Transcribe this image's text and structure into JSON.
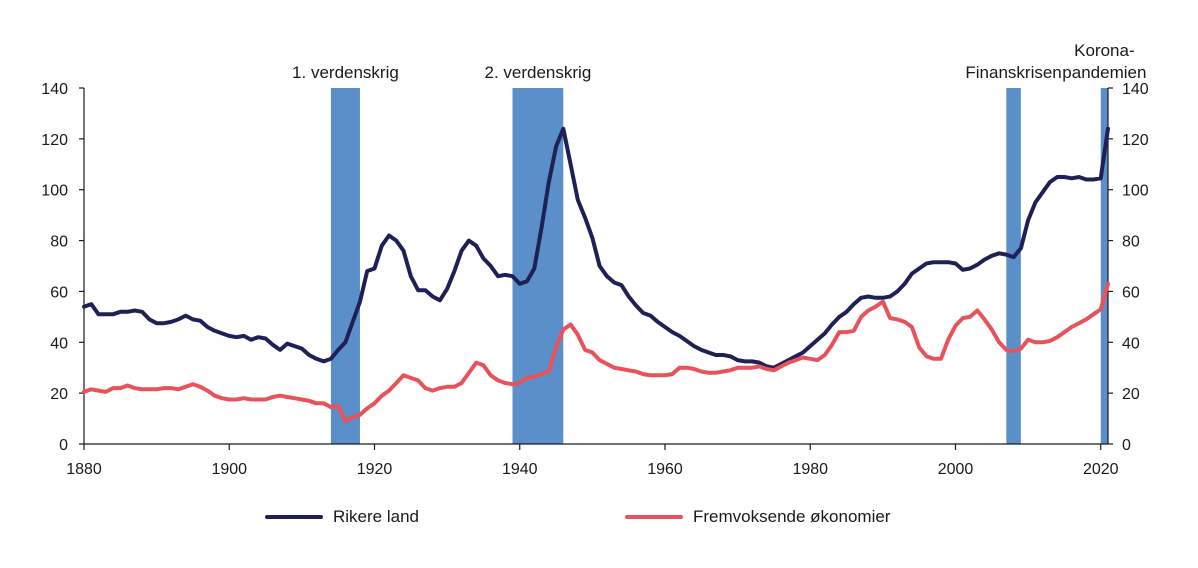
{
  "chart_data": {
    "type": "line",
    "xlim": [
      1880,
      2021
    ],
    "ylim": [
      0,
      140
    ],
    "x_ticks": [
      1880,
      1900,
      1920,
      1940,
      1960,
      1980,
      2000,
      2020
    ],
    "y_ticks": [
      0,
      20,
      40,
      60,
      80,
      100,
      120,
      140
    ],
    "grid": false,
    "legend_position": "bottom",
    "shaded_periods": [
      {
        "label_lines": [
          "1. verdenskrig"
        ],
        "start": 1914,
        "end": 1918
      },
      {
        "label_lines": [
          "2. verdenskrig"
        ],
        "start": 1939,
        "end": 1946
      },
      {
        "label_lines": [
          "Finanskrisen"
        ],
        "start": 2007,
        "end": 2009
      },
      {
        "label_lines": [
          "Korona-",
          "pandemien"
        ],
        "start": 2020,
        "end": 2021
      }
    ],
    "series": [
      {
        "name": "Rikere land",
        "color": "#1f2156",
        "points": [
          [
            1880,
            54
          ],
          [
            1881,
            55
          ],
          [
            1882,
            51
          ],
          [
            1883,
            51
          ],
          [
            1884,
            51
          ],
          [
            1885,
            52
          ],
          [
            1886,
            52
          ],
          [
            1887,
            52.5
          ],
          [
            1888,
            52
          ],
          [
            1889,
            49
          ],
          [
            1890,
            47.5
          ],
          [
            1891,
            47.5
          ],
          [
            1892,
            48
          ],
          [
            1893,
            49
          ],
          [
            1894,
            50.5
          ],
          [
            1895,
            49
          ],
          [
            1896,
            48.5
          ],
          [
            1897,
            46
          ],
          [
            1898,
            44.5
          ],
          [
            1899,
            43.5
          ],
          [
            1900,
            42.5
          ],
          [
            1901,
            42
          ],
          [
            1902,
            42.5
          ],
          [
            1903,
            41
          ],
          [
            1904,
            42
          ],
          [
            1905,
            41.5
          ],
          [
            1906,
            39
          ],
          [
            1907,
            37
          ],
          [
            1908,
            39.5
          ],
          [
            1909,
            38.5
          ],
          [
            1910,
            37.5
          ],
          [
            1911,
            35
          ],
          [
            1912,
            33.5
          ],
          [
            1913,
            32.5
          ],
          [
            1914,
            33.5
          ],
          [
            1915,
            37
          ],
          [
            1916,
            40
          ],
          [
            1917,
            48
          ],
          [
            1918,
            56
          ],
          [
            1919,
            68
          ],
          [
            1920,
            69
          ],
          [
            1921,
            78
          ],
          [
            1922,
            82
          ],
          [
            1923,
            80
          ],
          [
            1924,
            76
          ],
          [
            1925,
            66
          ],
          [
            1926,
            60.5
          ],
          [
            1927,
            60.5
          ],
          [
            1928,
            58
          ],
          [
            1929,
            56.5
          ],
          [
            1930,
            61
          ],
          [
            1931,
            68
          ],
          [
            1932,
            76
          ],
          [
            1933,
            80
          ],
          [
            1934,
            78
          ],
          [
            1935,
            73
          ],
          [
            1936,
            70
          ],
          [
            1937,
            66
          ],
          [
            1938,
            66.5
          ],
          [
            1939,
            66
          ],
          [
            1940,
            63
          ],
          [
            1941,
            64
          ],
          [
            1942,
            69
          ],
          [
            1943,
            85
          ],
          [
            1944,
            103
          ],
          [
            1945,
            117
          ],
          [
            1946,
            124
          ],
          [
            1947,
            110
          ],
          [
            1948,
            96
          ],
          [
            1949,
            89
          ],
          [
            1950,
            81
          ],
          [
            1951,
            70
          ],
          [
            1952,
            66
          ],
          [
            1953,
            63.5
          ],
          [
            1954,
            62.5
          ],
          [
            1955,
            58
          ],
          [
            1956,
            54.5
          ],
          [
            1957,
            51.5
          ],
          [
            1958,
            50.5
          ],
          [
            1959,
            48
          ],
          [
            1960,
            46
          ],
          [
            1961,
            44
          ],
          [
            1962,
            42.5
          ],
          [
            1963,
            40.5
          ],
          [
            1964,
            38.5
          ],
          [
            1965,
            37
          ],
          [
            1966,
            36
          ],
          [
            1967,
            35
          ],
          [
            1968,
            35
          ],
          [
            1969,
            34.5
          ],
          [
            1970,
            33
          ],
          [
            1971,
            32.5
          ],
          [
            1972,
            32.5
          ],
          [
            1973,
            32
          ],
          [
            1974,
            30.5
          ],
          [
            1975,
            30
          ],
          [
            1976,
            31.5
          ],
          [
            1977,
            33
          ],
          [
            1978,
            34.5
          ],
          [
            1979,
            36
          ],
          [
            1980,
            38.5
          ],
          [
            1981,
            41
          ],
          [
            1982,
            43.5
          ],
          [
            1983,
            47
          ],
          [
            1984,
            50
          ],
          [
            1985,
            52
          ],
          [
            1986,
            55
          ],
          [
            1987,
            57.5
          ],
          [
            1988,
            58
          ],
          [
            1989,
            57.5
          ],
          [
            1990,
            57.5
          ],
          [
            1991,
            58
          ],
          [
            1992,
            60
          ],
          [
            1993,
            63
          ],
          [
            1994,
            67
          ],
          [
            1995,
            69
          ],
          [
            1996,
            71
          ],
          [
            1997,
            71.5
          ],
          [
            1998,
            71.5
          ],
          [
            1999,
            71.5
          ],
          [
            2000,
            71
          ],
          [
            2001,
            68.5
          ],
          [
            2002,
            69
          ],
          [
            2003,
            70.5
          ],
          [
            2004,
            72.5
          ],
          [
            2005,
            74
          ],
          [
            2006,
            75
          ],
          [
            2007,
            74.5
          ],
          [
            2008,
            73.5
          ],
          [
            2009,
            77
          ],
          [
            2010,
            88
          ],
          [
            2011,
            95
          ],
          [
            2012,
            99
          ],
          [
            2013,
            103
          ],
          [
            2014,
            105
          ],
          [
            2015,
            105
          ],
          [
            2016,
            104.5
          ],
          [
            2017,
            105
          ],
          [
            2018,
            104
          ],
          [
            2019,
            104
          ],
          [
            2020,
            104.5
          ],
          [
            2021,
            124
          ]
        ]
      },
      {
        "name": "Fremvoksende økonomier",
        "color": "#e8535b",
        "points": [
          [
            1880,
            20.5
          ],
          [
            1881,
            21.5
          ],
          [
            1882,
            21
          ],
          [
            1883,
            20.5
          ],
          [
            1884,
            22
          ],
          [
            1885,
            22
          ],
          [
            1886,
            23
          ],
          [
            1887,
            22
          ],
          [
            1888,
            21.5
          ],
          [
            1889,
            21.5
          ],
          [
            1890,
            21.5
          ],
          [
            1891,
            22
          ],
          [
            1892,
            22
          ],
          [
            1893,
            21.5
          ],
          [
            1894,
            22.5
          ],
          [
            1895,
            23.5
          ],
          [
            1896,
            22.5
          ],
          [
            1897,
            21
          ],
          [
            1898,
            19
          ],
          [
            1899,
            18
          ],
          [
            1900,
            17.5
          ],
          [
            1901,
            17.5
          ],
          [
            1902,
            18
          ],
          [
            1903,
            17.5
          ],
          [
            1904,
            17.5
          ],
          [
            1905,
            17.5
          ],
          [
            1906,
            18.5
          ],
          [
            1907,
            19
          ],
          [
            1908,
            18.5
          ],
          [
            1909,
            18
          ],
          [
            1910,
            17.5
          ],
          [
            1911,
            17
          ],
          [
            1912,
            16
          ],
          [
            1913,
            16
          ],
          [
            1914,
            14.5
          ],
          [
            1915,
            15
          ],
          [
            1916,
            9
          ],
          [
            1917,
            10.5
          ],
          [
            1918,
            11.5
          ],
          [
            1919,
            14
          ],
          [
            1920,
            16
          ],
          [
            1921,
            19
          ],
          [
            1922,
            21
          ],
          [
            1923,
            24
          ],
          [
            1924,
            27
          ],
          [
            1925,
            26
          ],
          [
            1926,
            25
          ],
          [
            1927,
            22
          ],
          [
            1928,
            21
          ],
          [
            1929,
            22
          ],
          [
            1930,
            22.5
          ],
          [
            1931,
            22.5
          ],
          [
            1932,
            24
          ],
          [
            1933,
            28
          ],
          [
            1934,
            32
          ],
          [
            1935,
            31
          ],
          [
            1936,
            27
          ],
          [
            1937,
            25
          ],
          [
            1938,
            24
          ],
          [
            1939,
            23.5
          ],
          [
            1940,
            24
          ],
          [
            1941,
            26
          ],
          [
            1942,
            26.5
          ],
          [
            1943,
            27.5
          ],
          [
            1944,
            28.5
          ],
          [
            1945,
            38
          ],
          [
            1946,
            45
          ],
          [
            1947,
            47
          ],
          [
            1948,
            43
          ],
          [
            1949,
            37
          ],
          [
            1950,
            36
          ],
          [
            1951,
            33
          ],
          [
            1952,
            31.5
          ],
          [
            1953,
            30
          ],
          [
            1954,
            29.5
          ],
          [
            1955,
            29
          ],
          [
            1956,
            28.5
          ],
          [
            1957,
            27.5
          ],
          [
            1958,
            27
          ],
          [
            1959,
            27
          ],
          [
            1960,
            27
          ],
          [
            1961,
            27.5
          ],
          [
            1962,
            30
          ],
          [
            1963,
            30
          ],
          [
            1964,
            29.5
          ],
          [
            1965,
            28.5
          ],
          [
            1966,
            28
          ],
          [
            1967,
            28
          ],
          [
            1968,
            28.5
          ],
          [
            1969,
            29
          ],
          [
            1970,
            30
          ],
          [
            1971,
            30
          ],
          [
            1972,
            30
          ],
          [
            1973,
            30.5
          ],
          [
            1974,
            29.5
          ],
          [
            1975,
            29
          ],
          [
            1976,
            30.5
          ],
          [
            1977,
            32
          ],
          [
            1978,
            33
          ],
          [
            1979,
            34
          ],
          [
            1980,
            33.5
          ],
          [
            1981,
            33
          ],
          [
            1982,
            35
          ],
          [
            1983,
            39
          ],
          [
            1984,
            44
          ],
          [
            1985,
            44
          ],
          [
            1986,
            44.5
          ],
          [
            1987,
            50
          ],
          [
            1988,
            52.5
          ],
          [
            1989,
            54
          ],
          [
            1990,
            56
          ],
          [
            1991,
            49.5
          ],
          [
            1992,
            49
          ],
          [
            1993,
            48
          ],
          [
            1994,
            46
          ],
          [
            1995,
            38
          ],
          [
            1996,
            34.5
          ],
          [
            1997,
            33.5
          ],
          [
            1998,
            33.5
          ],
          [
            1999,
            41
          ],
          [
            2000,
            46.5
          ],
          [
            2001,
            49.5
          ],
          [
            2002,
            50
          ],
          [
            2003,
            52.5
          ],
          [
            2004,
            49
          ],
          [
            2005,
            45
          ],
          [
            2006,
            40
          ],
          [
            2007,
            37
          ],
          [
            2008,
            36.5
          ],
          [
            2009,
            37.5
          ],
          [
            2010,
            41
          ],
          [
            2011,
            40
          ],
          [
            2012,
            40
          ],
          [
            2013,
            40.5
          ],
          [
            2014,
            42
          ],
          [
            2015,
            44
          ],
          [
            2016,
            46
          ],
          [
            2017,
            47.5
          ],
          [
            2018,
            49
          ],
          [
            2019,
            51
          ],
          [
            2020,
            53
          ],
          [
            2021,
            63
          ]
        ]
      }
    ]
  }
}
